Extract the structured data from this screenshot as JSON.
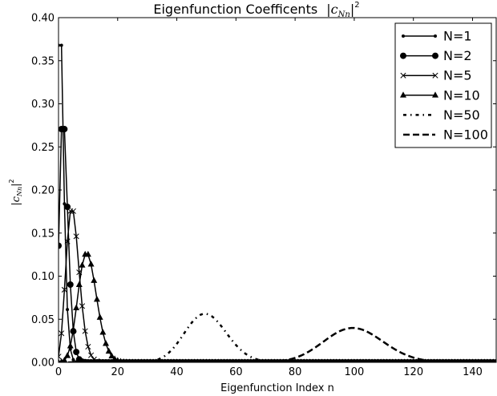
{
  "chart_data": {
    "type": "line",
    "title": "Eigenfunction Coefficents",
    "title_math": "|c",
    "title_math_sub": "Nn",
    "title_math_end": "|",
    "title_math_sup": "2",
    "xlabel": "Eigenfunction Index n",
    "ylabel_math": "|c",
    "ylabel_math_sub": "Nn",
    "ylabel_math_end": "|",
    "ylabel_math_sup": "2",
    "xlim": [
      0,
      148
    ],
    "ylim": [
      0,
      0.4
    ],
    "x_ticks": [
      0,
      20,
      40,
      60,
      80,
      100,
      120,
      140
    ],
    "x_tick_labels": [
      "0",
      "20",
      "40",
      "60",
      "80",
      "100",
      "120",
      "140"
    ],
    "y_ticks": [
      0,
      0.05,
      0.1,
      0.15,
      0.2,
      0.25,
      0.3,
      0.35,
      0.4
    ],
    "y_tick_labels": [
      "0.00",
      "0.05",
      "0.10",
      "0.15",
      "0.20",
      "0.25",
      "0.30",
      "0.35",
      "0.40"
    ],
    "grid": false,
    "legend_position": "top-right",
    "color": "#000000",
    "series": [
      {
        "name": "N=1",
        "N": 1,
        "marker": "point",
        "line": "solid"
      },
      {
        "name": "N=2",
        "N": 2,
        "marker": "circle",
        "line": "solid"
      },
      {
        "name": "N=5",
        "N": 5,
        "marker": "x",
        "line": "solid"
      },
      {
        "name": "N=10",
        "N": 10,
        "marker": "triangle",
        "line": "solid"
      },
      {
        "name": "N=50",
        "N": 50,
        "marker": "none",
        "line": "dashdot"
      },
      {
        "name": "N=100",
        "N": 100,
        "marker": "none",
        "line": "dashed"
      }
    ]
  }
}
